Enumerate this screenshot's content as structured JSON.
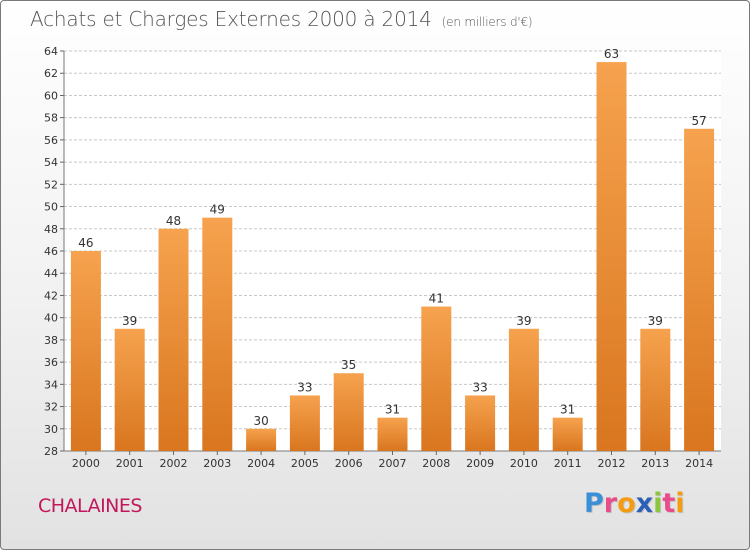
{
  "header": {
    "title": "Achats et Charges Externes 2000 à 2014",
    "unit": "(en milliers d'€)"
  },
  "footer": {
    "place": "CHALAINES"
  },
  "logo": {
    "letters": [
      {
        "ch": "P",
        "color": "#3a8fd6"
      },
      {
        "ch": "r",
        "color": "#e84c8a"
      },
      {
        "ch": "o",
        "color": "#f39c12"
      },
      {
        "ch": "x",
        "color": "#2b5fb8"
      },
      {
        "ch": "i",
        "color": "#8cc63f"
      },
      {
        "ch": "t",
        "color": "#e84c8a"
      },
      {
        "ch": "i",
        "color": "#f39c12"
      }
    ]
  },
  "colors": {
    "bar_top": "#f6a24e",
    "bar_bottom": "#d9761f",
    "grid": "#c8c8c8",
    "axis_text": "#333333",
    "accent": "#c2185b"
  },
  "chart_data": {
    "type": "bar",
    "title": "Achats et Charges Externes 2000 à 2014",
    "subtitle": "(en milliers d'€)",
    "xlabel": "",
    "ylabel": "",
    "categories": [
      "2000",
      "2001",
      "2002",
      "2003",
      "2004",
      "2005",
      "2006",
      "2007",
      "2008",
      "2009",
      "2010",
      "2011",
      "2012",
      "2013",
      "2014"
    ],
    "values": [
      46,
      39,
      48,
      49,
      30,
      33,
      35,
      31,
      41,
      33,
      39,
      31,
      63,
      39,
      57
    ],
    "ylim": [
      28,
      64
    ],
    "yticks": [
      28,
      30,
      32,
      34,
      36,
      38,
      40,
      42,
      44,
      46,
      48,
      50,
      52,
      54,
      56,
      58,
      60,
      62,
      64
    ],
    "grid": true,
    "data_labels": true
  }
}
